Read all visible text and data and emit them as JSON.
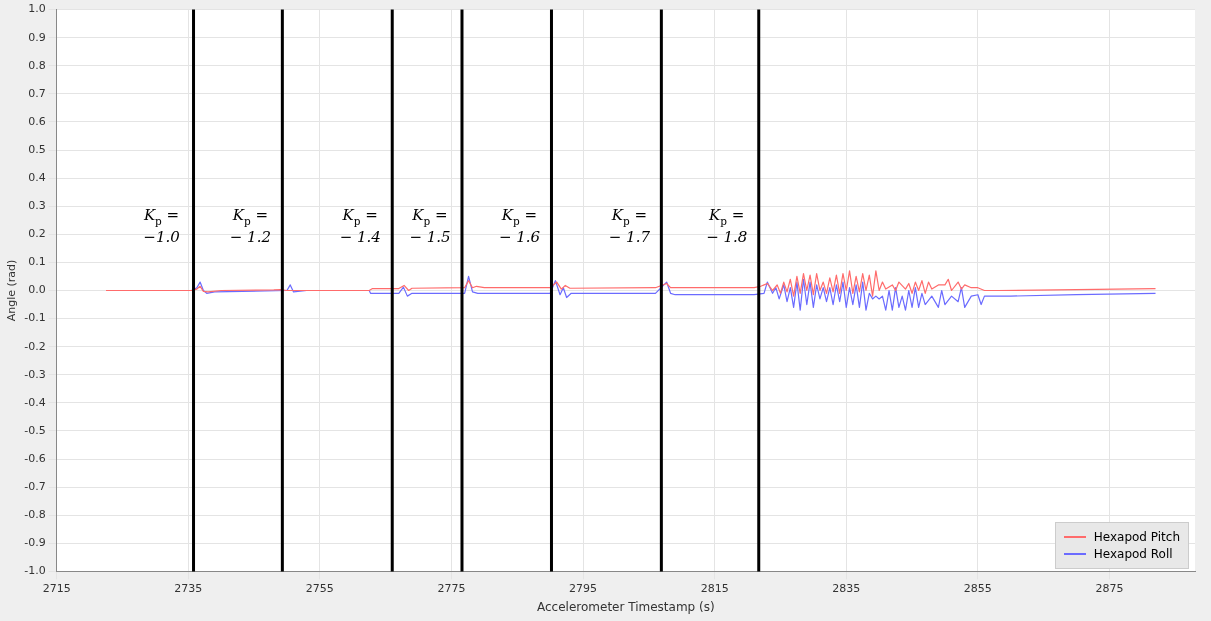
{
  "chart_data": {
    "type": "line",
    "xlabel": "Accelerometer Timestamp (s)",
    "ylabel": "Angle (rad)",
    "xlim": [
      2715,
      2888
    ],
    "xticks": [
      2715,
      2735,
      2755,
      2775,
      2795,
      2815,
      2835,
      2855,
      2875
    ],
    "ylim": [
      -1,
      1
    ],
    "yticks": [
      {
        "value": -1,
        "label": "-1.0"
      },
      -0.9,
      -0.8,
      -0.7,
      -0.6,
      -0.5,
      -0.4,
      -0.3,
      -0.2,
      -0.1,
      {
        "value": 0,
        "label": "0.0"
      },
      0.1,
      0.2,
      0.3,
      0.4,
      0.5,
      0.6,
      0.7,
      0.8,
      0.9,
      {
        "value": 1,
        "label": "1.0"
      }
    ],
    "grid": true,
    "legend": "bottom right",
    "marker": "none",
    "line_style": "solid",
    "ref_lines": [
      {
        "axis": "x",
        "value": 2735.8,
        "color": "#000000"
      },
      {
        "axis": "x",
        "value": 2749.3,
        "color": "#000000"
      },
      {
        "axis": "x",
        "value": 2766.0,
        "color": "#000000"
      },
      {
        "axis": "x",
        "value": 2776.6,
        "color": "#000000"
      },
      {
        "axis": "x",
        "value": 2790.2,
        "color": "#000000"
      },
      {
        "axis": "x",
        "value": 2806.9,
        "color": "#000000"
      },
      {
        "axis": "x",
        "value": 2821.7,
        "color": "#000000"
      }
    ],
    "annotations": [
      "K$_{p}$ = −1.0",
      "K$_{p}$ = − 1.2",
      "K$_{p}$ = − 1.4",
      "K$_{p}$ = − 1.5",
      "K$_{p}$ = − 1.6",
      "K$_{p}$ = − 1.7",
      "K$_{p}$ = − 1.8"
    ],
    "series": [
      {
        "name": "Hexapod Pitch",
        "color": "#ff6b6b",
        "x": [
          2722.5,
          2735.5,
          2736.3,
          2736.8,
          2737.3,
          2738,
          2740,
          2748,
          2749,
          2750,
          2762.5,
          2763,
          2767,
          2767.8,
          2768.5,
          2769,
          2777,
          2777.6,
          2778.2,
          2778.8,
          2780,
          2790,
          2791,
          2791.7,
          2792.3,
          2793,
          2806,
          2807.7,
          2808.3,
          2821,
          2822,
          2823,
          2823.8,
          2824.5,
          2825,
          2825.5,
          2826,
          2826.5,
          2827,
          2827.5,
          2828,
          2828.5,
          2829,
          2829.5,
          2830,
          2830.5,
          2831,
          2831.5,
          2832,
          2832.5,
          2833,
          2833.5,
          2834,
          2834.5,
          2835,
          2835.5,
          2836,
          2836.5,
          2837,
          2837.5,
          2838,
          2838.5,
          2839,
          2839.5,
          2840,
          2840.5,
          2841,
          2842,
          2842.5,
          2843,
          2844,
          2844.5,
          2845,
          2845.5,
          2846,
          2846.5,
          2847,
          2847.5,
          2848,
          2849,
          2850,
          2850.5,
          2851,
          2852,
          2852.5,
          2853,
          2854,
          2855,
          2856,
          2858,
          2870,
          2882
        ],
        "values": [
          0,
          0,
          0.005,
          0.015,
          -0.003,
          -0.005,
          0,
          0.002,
          0.003,
          0,
          0,
          0.007,
          0.007,
          0.018,
          0,
          0.008,
          0.01,
          0.035,
          0.01,
          0.015,
          0.01,
          0.01,
          0.03,
          0.005,
          0.018,
          0.008,
          0.01,
          0.025,
          0.01,
          0.01,
          0.015,
          0.025,
          0,
          0.02,
          -0.01,
          0.03,
          -0.005,
          0.04,
          -0.02,
          0.05,
          -0.01,
          0.06,
          0,
          0.055,
          -0.015,
          0.06,
          0,
          0.03,
          -0.01,
          0.045,
          -0.005,
          0.055,
          -0.01,
          0.06,
          0,
          0.07,
          -0.01,
          0.05,
          -0.005,
          0.06,
          0,
          0.055,
          -0.02,
          0.07,
          0,
          0.03,
          0.005,
          0.02,
          0,
          0.03,
          0.005,
          0.025,
          -0.01,
          0.03,
          0,
          0.035,
          -0.01,
          0.03,
          0.005,
          0.02,
          0.02,
          0.04,
          0,
          0.03,
          0.005,
          0.02,
          0.01,
          0.01,
          0,
          0,
          0.003,
          0.007
        ]
      },
      {
        "name": "Hexapod Roll",
        "color": "#6b6bff",
        "x": [
          2722.5,
          2735.5,
          2736.3,
          2736.8,
          2737.3,
          2737.8,
          2739,
          2750,
          2750.5,
          2751,
          2753,
          2762.5,
          2762.7,
          2767,
          2767.7,
          2768.3,
          2769,
          2777,
          2777.6,
          2778.2,
          2779,
          2790,
          2790.8,
          2791.5,
          2792,
          2792.5,
          2793.2,
          2806,
          2807.7,
          2808.3,
          2809,
          2821,
          2822.5,
          2823,
          2823.8,
          2824.3,
          2824.8,
          2825.5,
          2826,
          2826.5,
          2827,
          2827.5,
          2828,
          2828.5,
          2829,
          2829.5,
          2830,
          2830.5,
          2831,
          2831.5,
          2832,
          2832.5,
          2833,
          2833.5,
          2834,
          2834.5,
          2835,
          2835.5,
          2836,
          2836.5,
          2837,
          2837.5,
          2838,
          2838.5,
          2839,
          2839.5,
          2840,
          2840.5,
          2841,
          2841.5,
          2842,
          2842.5,
          2843,
          2843.5,
          2844,
          2844.5,
          2845,
          2845.5,
          2846,
          2846.5,
          2847,
          2848,
          2849,
          2849.5,
          2850,
          2851,
          2852,
          2852.5,
          2853,
          2854,
          2855,
          2855.5,
          2856,
          2857,
          2860,
          2870,
          2882
        ],
        "values": [
          0,
          0,
          0.01,
          0.03,
          0,
          -0.01,
          -0.005,
          0,
          0.02,
          -0.005,
          0,
          0,
          -0.01,
          -0.01,
          0.012,
          -0.02,
          -0.01,
          -0.01,
          0.05,
          -0.005,
          -0.01,
          -0.01,
          0.035,
          -0.015,
          0.01,
          -0.025,
          -0.01,
          -0.01,
          0.03,
          -0.01,
          -0.015,
          -0.015,
          -0.01,
          0.03,
          -0.01,
          0.01,
          -0.03,
          0.02,
          -0.04,
          0.01,
          -0.06,
          0.03,
          -0.07,
          0.04,
          -0.05,
          0.03,
          -0.06,
          0.02,
          -0.03,
          0.01,
          -0.04,
          0.01,
          -0.05,
          0.02,
          -0.04,
          0.03,
          -0.06,
          0.01,
          -0.05,
          0.02,
          -0.06,
          0.03,
          -0.07,
          -0.01,
          -0.03,
          -0.02,
          -0.03,
          -0.02,
          -0.07,
          0,
          -0.07,
          0.01,
          -0.06,
          -0.02,
          -0.07,
          0,
          -0.06,
          0.01,
          -0.06,
          -0.01,
          -0.05,
          -0.02,
          -0.06,
          0,
          -0.05,
          -0.02,
          -0.04,
          0.01,
          -0.06,
          -0.02,
          -0.015,
          -0.05,
          -0.02,
          -0.02,
          -0.02,
          -0.015,
          -0.01
        ]
      }
    ]
  }
}
